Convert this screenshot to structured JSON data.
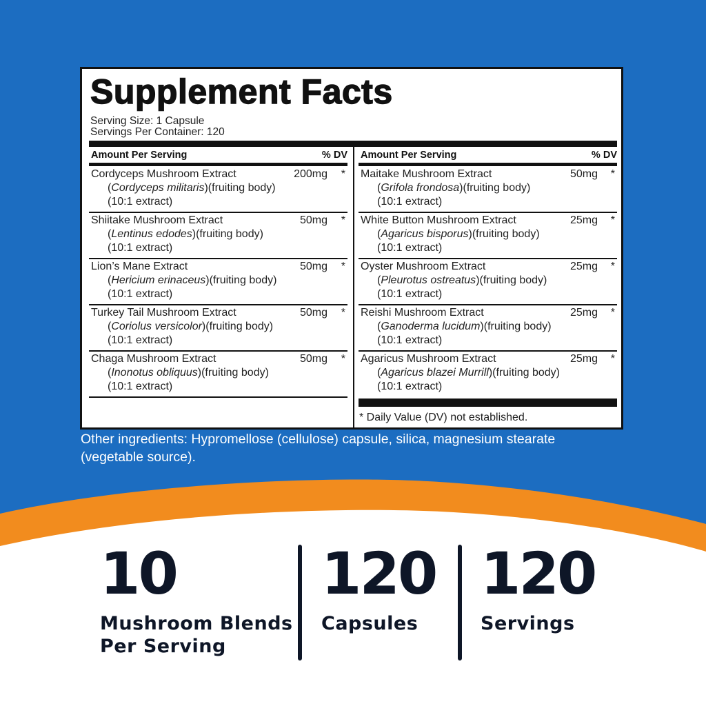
{
  "panel": {
    "title": "Supplement Facts",
    "serving_size": "Serving Size: 1 Capsule",
    "servings_per_container": "Servings Per Container: 120",
    "columns": [
      {
        "header": {
          "amount": "Amount Per Serving",
          "dv": "% DV"
        },
        "rows": [
          {
            "name": "Cordyceps Mushroom Extract",
            "amount": "200mg",
            "dv": "*",
            "source": {
              "open": "(",
              "latin": "Cordyceps militaris",
              "close": ")(fruiting body)"
            },
            "extract": "(10:1 extract)"
          },
          {
            "name": "Shiitake Mushroom Extract",
            "amount": "50mg",
            "dv": "*",
            "source": {
              "open": "(",
              "latin": "Lentinus edodes",
              "close": ")(fruiting body)"
            },
            "extract": "(10:1 extract)"
          },
          {
            "name": "Lion’s Mane Extract",
            "amount": "50mg",
            "dv": "*",
            "source": {
              "open": "(",
              "latin": "Hericium erinaceus",
              "close": ")(fruiting body)"
            },
            "extract": "(10:1 extract)"
          },
          {
            "name": "Turkey Tail Mushroom Extract",
            "amount": "50mg",
            "dv": "*",
            "source": {
              "open": "(",
              "latin": "Coriolus versicolor",
              "close": ")(fruiting body)"
            },
            "extract": "(10:1 extract)"
          },
          {
            "name": "Chaga Mushroom Extract",
            "amount": "50mg",
            "dv": "*",
            "source": {
              "open": "(",
              "latin": "Inonotus obliquus",
              "close": ")(fruiting body)"
            },
            "extract": "(10:1 extract)"
          }
        ]
      },
      {
        "header": {
          "amount": "Amount Per Serving",
          "dv": "% DV"
        },
        "rows": [
          {
            "name": "Maitake Mushroom Extract",
            "amount": "50mg",
            "dv": "*",
            "source": {
              "open": "(",
              "latin": "Grifola frondosa",
              "close": ")(fruiting body)"
            },
            "extract": "(10:1 extract)"
          },
          {
            "name": "White Button Mushroom Extract",
            "amount": "25mg",
            "dv": "*",
            "source": {
              "open": "(",
              "latin": "Agaricus bisporus",
              "close": ")(fruiting body)"
            },
            "extract": "(10:1 extract)"
          },
          {
            "name": "Oyster Mushroom Extract",
            "amount": "25mg",
            "dv": "*",
            "source": {
              "open": "(",
              "latin": "Pleurotus ostreatus",
              "close": ")(fruiting body)"
            },
            "extract": "(10:1 extract)"
          },
          {
            "name": "Reishi Mushroom Extract",
            "amount": "25mg",
            "dv": "*",
            "source": {
              "open": "(",
              "latin": "Ganoderma lucidum",
              "close": ")(fruiting body)"
            },
            "extract": "(10:1 extract)"
          },
          {
            "name": "Agaricus Mushroom Extract",
            "amount": "25mg",
            "dv": "*",
            "source": {
              "open": "(",
              "latin": "Agaricus blazei Murrill",
              "close": ")(fruiting body)"
            },
            "extract": "(10:1 extract)"
          }
        ]
      }
    ],
    "footnote": "* Daily Value (DV) not established."
  },
  "other_ingredients": [
    "Other ingredients: Hypromellose (cellulose) capsule, silica, magnesium stearate",
    "(vegetable source)."
  ],
  "stats": [
    {
      "number": "10",
      "label": [
        "Mushroom Blends",
        "Per Serving"
      ]
    },
    {
      "number": "120",
      "label": [
        "Capsules"
      ]
    },
    {
      "number": "120",
      "label": [
        "Servings"
      ]
    }
  ]
}
